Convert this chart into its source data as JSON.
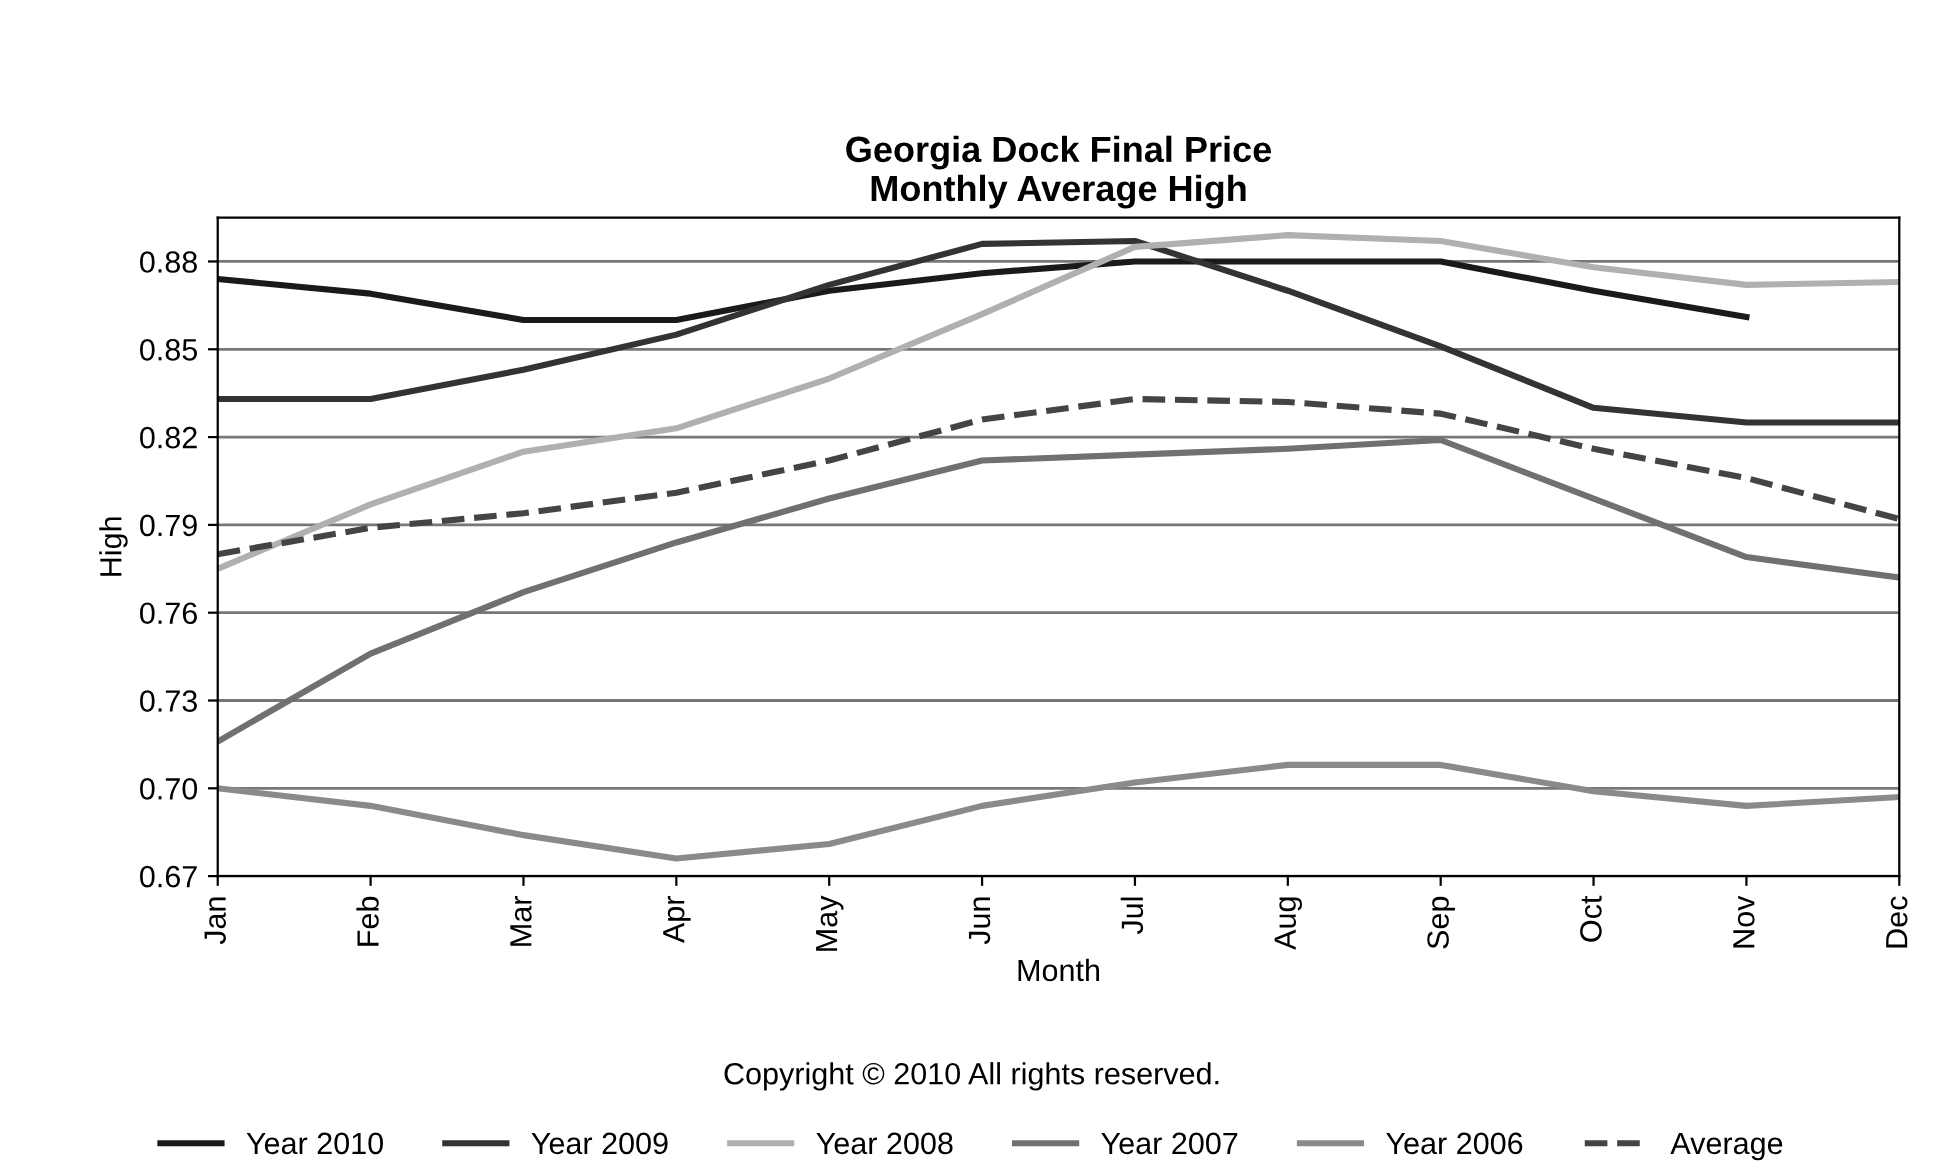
{
  "chart_data": {
    "type": "line",
    "title": "Georgia Dock Final Price\nMonthly Average High",
    "xlabel": "Month",
    "ylabel": "High",
    "categories": [
      "Jan",
      "Feb",
      "Mar",
      "Apr",
      "May",
      "Jun",
      "Jul",
      "Aug",
      "Sep",
      "Oct",
      "Nov",
      "Dec"
    ],
    "series": [
      {
        "name": "Year 2010",
        "color": "#1a1a1a",
        "values": [
          0.874,
          0.869,
          0.86,
          0.86,
          0.87,
          0.876,
          0.88,
          0.88,
          0.88,
          0.87,
          0.861,
          null
        ]
      },
      {
        "name": "Year 2009",
        "color": "#333333",
        "values": [
          0.833,
          0.833,
          0.843,
          0.855,
          0.872,
          0.886,
          0.887,
          0.87,
          0.851,
          0.83,
          0.825,
          0.825
        ]
      },
      {
        "name": "Year 2008",
        "color": "#b0b0b0",
        "values": [
          0.775,
          0.797,
          0.815,
          0.823,
          0.84,
          0.862,
          0.885,
          0.889,
          0.887,
          0.878,
          0.872,
          0.873
        ]
      },
      {
        "name": "Year 2007",
        "color": "#707070",
        "values": [
          0.716,
          0.746,
          0.767,
          0.784,
          0.799,
          0.812,
          0.814,
          0.816,
          0.819,
          0.799,
          0.779,
          0.772
        ]
      },
      {
        "name": "Year 2006",
        "color": "#8a8a8a",
        "values": [
          0.7,
          0.694,
          0.684,
          0.676,
          0.681,
          0.694,
          0.702,
          0.708,
          0.708,
          0.699,
          0.694,
          0.697
        ]
      },
      {
        "name": "Average",
        "color": "#444444",
        "line_style": "dashed",
        "values": [
          0.78,
          0.789,
          0.794,
          0.801,
          0.812,
          0.826,
          0.833,
          0.832,
          0.828,
          0.816,
          0.806,
          0.792
        ]
      }
    ],
    "ylim": [
      0.67,
      0.895
    ],
    "yticks": [
      {
        "value": 0.67,
        "label": "0.67"
      },
      {
        "value": 0.7,
        "label": "0.70"
      },
      {
        "value": 0.73,
        "label": "0.73"
      },
      {
        "value": 0.76,
        "label": "0.76"
      },
      {
        "value": 0.79,
        "label": "0.79"
      },
      {
        "value": 0.82,
        "label": "0.82"
      },
      {
        "value": 0.85,
        "label": "0.85"
      },
      {
        "value": 0.88,
        "label": "0.88"
      }
    ],
    "grid": "y",
    "legend": "bottom",
    "line_style": "solid",
    "annotations": [
      "Copyright © 2010 All rights reserved."
    ]
  }
}
